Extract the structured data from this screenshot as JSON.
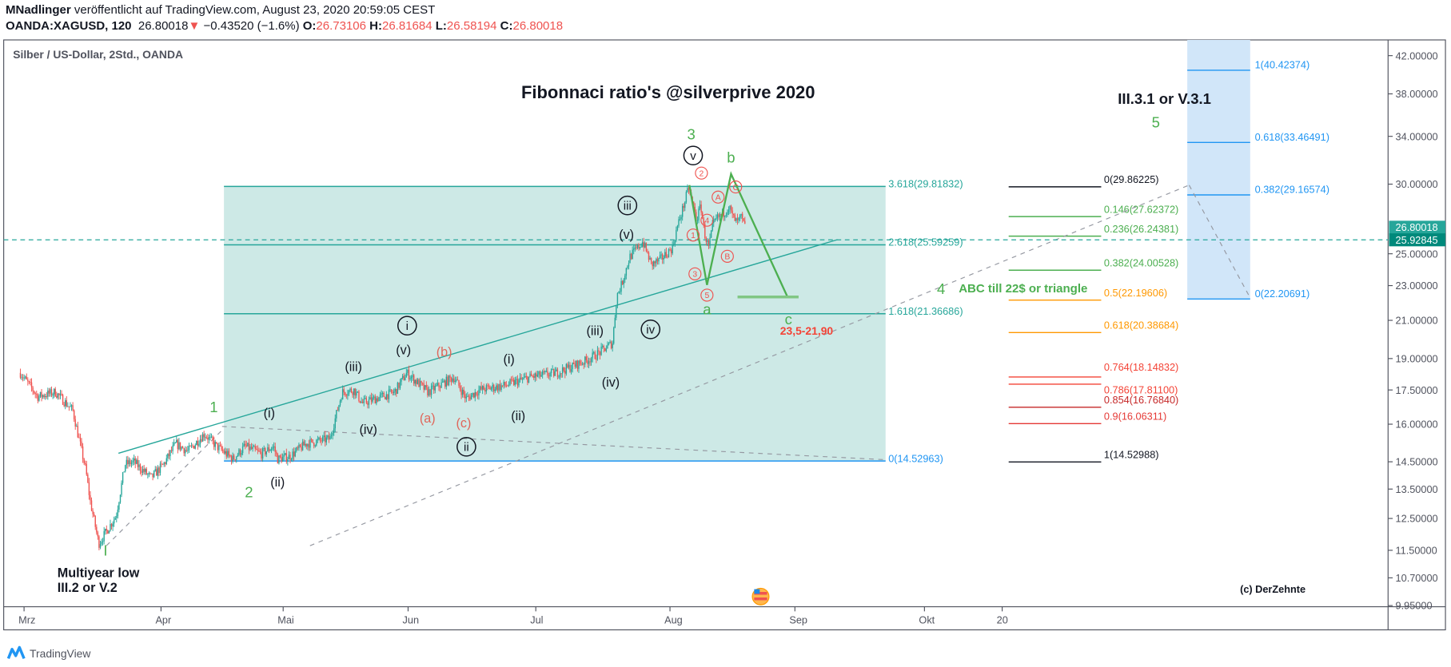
{
  "header": {
    "author": "MNadlinger",
    "published": "veröffentlicht auf TradingView.com, August 23, 2020 20:59:05 CEST",
    "symbol": "OANDA:XAGUSD, 120",
    "last": "26.80018",
    "change_icon": "triangle-down",
    "change": "−0.43520 (−1.6%)",
    "o_label": "O:",
    "o": "26.73106",
    "h_label": "H:",
    "h": "26.81684",
    "l_label": "L:",
    "l": "26.58194",
    "c_label": "C:",
    "c": "26.80018"
  },
  "footer": {
    "brand": "TradingView"
  },
  "chart_data": {
    "type": "candlestick",
    "legend": "Silber / US-Dollar, 2Std., OANDA",
    "title": "Fibonnaci ratio's @silverprive 2020",
    "y_scale": "log",
    "ylim": [
      9.95,
      42
    ],
    "grid": false,
    "colors": {
      "up": "#26a69a",
      "down": "#ef5350",
      "accent": "#26a69a",
      "fib_blue": "#2196f3"
    },
    "price_axis": [
      "42.00000",
      "38.00000",
      "34.00000",
      "30.00000",
      "25.00000",
      "23.00000",
      "21.00000",
      "19.00000",
      "17.50000",
      "16.00000",
      "14.50000",
      "13.50000",
      "12.50000",
      "11.50000",
      "10.70000",
      "9.95000"
    ],
    "time_axis": [
      "Mrz",
      "Apr",
      "Mai",
      "Jun",
      "Jul",
      "Aug",
      "Sep",
      "Okt",
      "20"
    ],
    "last_price_tag": "26.80018",
    "line_price_tag": "25.92845",
    "price_path": [
      [
        "2020-03-01",
        18.3
      ],
      [
        "2020-03-05",
        17.2
      ],
      [
        "2020-03-09",
        17.4
      ],
      [
        "2020-03-13",
        16.6
      ],
      [
        "2020-03-16",
        14.2
      ],
      [
        "2020-03-17",
        13.1
      ],
      [
        "2020-03-19",
        11.7
      ],
      [
        "2020-03-23",
        12.6
      ],
      [
        "2020-03-25",
        14.4
      ],
      [
        "2020-03-27",
        14.5
      ],
      [
        "2020-03-31",
        13.9
      ],
      [
        "2020-04-03",
        14.4
      ],
      [
        "2020-04-06",
        15.2
      ],
      [
        "2020-04-09",
        14.9
      ],
      [
        "2020-04-13",
        15.6
      ],
      [
        "2020-04-16",
        15.1
      ],
      [
        "2020-04-20",
        14.6
      ],
      [
        "2020-04-23",
        15.1
      ],
      [
        "2020-04-27",
        14.8
      ],
      [
        "2020-04-30",
        15.1
      ],
      [
        "2020-05-01",
        14.6
      ],
      [
        "2020-05-04",
        14.7
      ],
      [
        "2020-05-08",
        15.2
      ],
      [
        "2020-05-14",
        15.4
      ],
      [
        "2020-05-17",
        17.4
      ],
      [
        "2020-05-20",
        17.5
      ],
      [
        "2020-05-22",
        16.9
      ],
      [
        "2020-05-30",
        17.4
      ],
      [
        "2020-06-02",
        18.3
      ],
      [
        "2020-06-07",
        17.4
      ],
      [
        "2020-06-13",
        18.1
      ],
      [
        "2020-06-16",
        17.1
      ],
      [
        "2020-06-19",
        17.5
      ],
      [
        "2020-06-25",
        17.7
      ],
      [
        "2020-07-01",
        18.1
      ],
      [
        "2020-07-07",
        18.3
      ],
      [
        "2020-07-14",
        18.9
      ],
      [
        "2020-07-17",
        19.3
      ],
      [
        "2020-07-20",
        19.8
      ],
      [
        "2020-07-21",
        22.4
      ],
      [
        "2020-07-22",
        23.0
      ],
      [
        "2020-07-24",
        24.8
      ],
      [
        "2020-07-27",
        25.8
      ],
      [
        "2020-07-29",
        24.3
      ],
      [
        "2020-07-31",
        24.6
      ],
      [
        "2020-08-03",
        25.4
      ],
      [
        "2020-08-04",
        26.6
      ],
      [
        "2020-08-06",
        28.6
      ],
      [
        "2020-08-07",
        29.7
      ],
      [
        "2020-08-09",
        27.3
      ],
      [
        "2020-08-10",
        28.4
      ],
      [
        "2020-08-11",
        26.3
      ],
      [
        "2020-08-12",
        25.4
      ],
      [
        "2020-08-13",
        26.9
      ],
      [
        "2020-08-14",
        27.4
      ],
      [
        "2020-08-16",
        27.9
      ],
      [
        "2020-08-17",
        28.3
      ],
      [
        "2020-08-18",
        27.5
      ],
      [
        "2020-08-19",
        27.1
      ],
      [
        "2020-08-20",
        27.5
      ],
      [
        "2020-08-21",
        26.8
      ]
    ],
    "fib_extension": [
      {
        "label": "3.618(29.81832)",
        "price": 29.81832,
        "color": "#26a69a"
      },
      {
        "label": "2.618(25.59259)",
        "price": 25.59259,
        "color": "#26a69a"
      },
      {
        "label": "1.618(21.36686)",
        "price": 21.36686,
        "color": "#26a69a"
      },
      {
        "label": "0(14.52963)",
        "price": 14.52963,
        "color": "#2196f3"
      }
    ],
    "fib_retracement": [
      {
        "label": "0(29.86225)",
        "price": 29.86225,
        "color": "#131722"
      },
      {
        "label": "0.146(27.62372)",
        "price": 27.62372,
        "color": "#4caf50"
      },
      {
        "label": "0.236(26.24381)",
        "price": 26.24381,
        "color": "#4caf50"
      },
      {
        "label": "0.382(24.00528)",
        "price": 24.00528,
        "color": "#4caf50"
      },
      {
        "label": "0.5(22.19606)",
        "price": 22.19606,
        "color": "#ff9800"
      },
      {
        "label": "0.618(20.38684)",
        "price": 20.38684,
        "color": "#ff9800"
      },
      {
        "label": "0.764(18.14832)",
        "price": 18.14832,
        "color": "#f44336"
      },
      {
        "label": "0.786(17.81100)",
        "price": 17.811,
        "color": "#f44336"
      },
      {
        "label": "0.854(16.76840)",
        "price": 16.7684,
        "color": "#c62828"
      },
      {
        "label": "0.9(16.06311)",
        "price": 16.06311,
        "color": "#e53935"
      },
      {
        "label": "1(14.52988)",
        "price": 14.52988,
        "color": "#131722"
      }
    ],
    "fib_target": [
      {
        "label": "1(40.42374)",
        "price": 40.42374
      },
      {
        "label": "0.618(33.46491)",
        "price": 33.46491
      },
      {
        "label": "0.382(29.16574)",
        "price": 29.16574
      },
      {
        "label": "0(22.20691)",
        "price": 22.20691
      }
    ],
    "wave_labels": [
      "3",
      "v",
      "b",
      "2",
      "A",
      "C",
      "4",
      "1",
      "B",
      "3",
      "5",
      "a",
      "iii",
      "(v)",
      "(iii)",
      "iv",
      "(iv)",
      "i",
      "(v)",
      "(b)",
      "(iii)",
      "(i)",
      "(a)",
      "(c)",
      "(ii)",
      "(iv)",
      "ii",
      "(i)",
      "1",
      "2",
      "(ii)",
      "I",
      "4",
      "5",
      "c"
    ],
    "notes": {
      "abc": "ABC till 22$ or triangle",
      "target": "23,5-21,90",
      "count": "III.3.1 or V.3.1",
      "low1": "Multiyear low",
      "low2": "III.2 or V.2",
      "credit": "(c) DerZehnte"
    }
  }
}
